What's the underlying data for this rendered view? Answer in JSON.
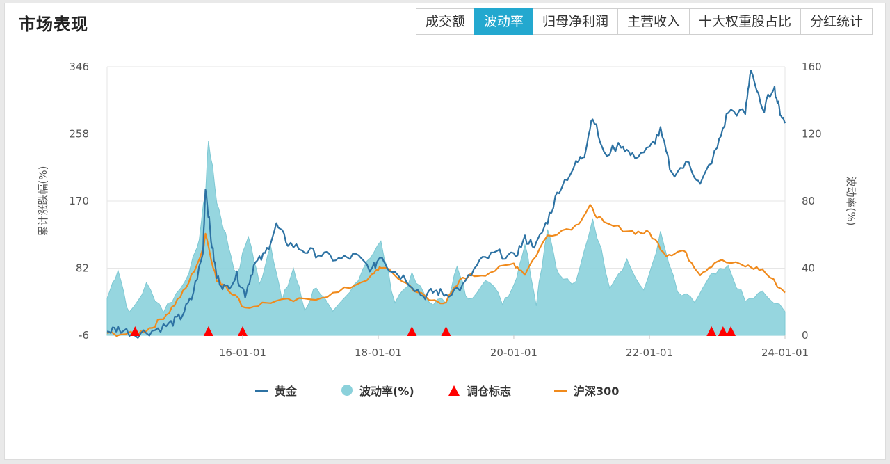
{
  "header": {
    "title": "市场表现",
    "tabs": [
      {
        "label": "成交额",
        "active": false
      },
      {
        "label": "波动率",
        "active": true
      },
      {
        "label": "归母净利润",
        "active": false
      },
      {
        "label": "主营收入",
        "active": false
      },
      {
        "label": "十大权重股占比",
        "active": false
      },
      {
        "label": "分红统计",
        "active": false
      }
    ]
  },
  "chart_data": {
    "type": "line",
    "left_axis": {
      "label": "累计涨跌幅(%)",
      "ticks": [
        "346",
        "258",
        "170",
        "82",
        "-6"
      ],
      "range": [
        -6,
        346
      ]
    },
    "right_axis": {
      "label": "波动率(%)",
      "ticks": [
        "160",
        "120",
        "80",
        "40",
        "0"
      ],
      "range": [
        0,
        160
      ]
    },
    "x_axis": {
      "ticks": [
        "16-01-01",
        "18-01-01",
        "20-01-01",
        "22-01-01",
        "24-01-01"
      ],
      "start": "2014-01-01",
      "end": "2024-01-01"
    },
    "grid": true,
    "legend_position": "bottom",
    "series": [
      {
        "name": "黄金",
        "kind": "line",
        "axis": "left",
        "color": "#2d72a3",
        "points": [
          [
            "2014-01-01",
            -1
          ],
          [
            "2014-03-01",
            3
          ],
          [
            "2014-06-01",
            -4
          ],
          [
            "2014-09-01",
            0
          ],
          [
            "2014-12-01",
            8
          ],
          [
            "2015-02-01",
            18
          ],
          [
            "2015-04-01",
            42
          ],
          [
            "2015-06-01",
            100
          ],
          [
            "2015-06-15",
            190
          ],
          [
            "2015-07-15",
            120
          ],
          [
            "2015-08-15",
            70
          ],
          [
            "2015-10-01",
            55
          ],
          [
            "2015-12-01",
            72
          ],
          [
            "2016-01-15",
            48
          ],
          [
            "2016-03-01",
            85
          ],
          [
            "2016-05-01",
            100
          ],
          [
            "2016-07-01",
            138
          ],
          [
            "2016-09-01",
            115
          ],
          [
            "2016-12-01",
            105
          ],
          [
            "2017-03-01",
            100
          ],
          [
            "2017-06-01",
            93
          ],
          [
            "2017-09-01",
            98
          ],
          [
            "2017-12-01",
            80
          ],
          [
            "2018-01-15",
            100
          ],
          [
            "2018-03-01",
            82
          ],
          [
            "2018-06-01",
            68
          ],
          [
            "2018-09-01",
            45
          ],
          [
            "2018-11-01",
            52
          ],
          [
            "2019-01-01",
            48
          ],
          [
            "2019-04-01",
            58
          ],
          [
            "2019-07-01",
            90
          ],
          [
            "2019-10-01",
            102
          ],
          [
            "2020-01-01",
            96
          ],
          [
            "2020-03-01",
            120
          ],
          [
            "2020-05-01",
            112
          ],
          [
            "2020-07-01",
            145
          ],
          [
            "2020-09-01",
            186
          ],
          [
            "2020-12-01",
            218
          ],
          [
            "2021-01-15",
            232
          ],
          [
            "2021-03-01",
            283
          ],
          [
            "2021-05-01",
            230
          ],
          [
            "2021-08-01",
            245
          ],
          [
            "2021-10-01",
            228
          ],
          [
            "2022-01-01",
            238
          ],
          [
            "2022-03-01",
            262
          ],
          [
            "2022-05-01",
            205
          ],
          [
            "2022-08-01",
            220
          ],
          [
            "2022-10-01",
            190
          ],
          [
            "2023-01-01",
            240
          ],
          [
            "2023-03-01",
            288
          ],
          [
            "2023-06-01",
            285
          ],
          [
            "2023-07-01",
            345
          ],
          [
            "2023-09-01",
            286
          ],
          [
            "2023-11-01",
            322
          ],
          [
            "2023-12-01",
            290
          ],
          [
            "2024-01-01",
            272
          ]
        ]
      },
      {
        "name": "波动率(%)",
        "kind": "area",
        "axis": "right",
        "color": "#8bd1db",
        "points": [
          [
            "2014-01-01",
            22
          ],
          [
            "2014-03-01",
            40
          ],
          [
            "2014-05-01",
            12
          ],
          [
            "2014-08-01",
            30
          ],
          [
            "2014-11-01",
            15
          ],
          [
            "2015-02-01",
            28
          ],
          [
            "2015-05-01",
            50
          ],
          [
            "2015-06-15",
            85
          ],
          [
            "2015-07-01",
            117
          ],
          [
            "2015-08-15",
            80
          ],
          [
            "2015-10-01",
            60
          ],
          [
            "2015-12-01",
            35
          ],
          [
            "2016-02-01",
            60
          ],
          [
            "2016-04-01",
            30
          ],
          [
            "2016-06-01",
            55
          ],
          [
            "2016-08-01",
            20
          ],
          [
            "2016-10-01",
            40
          ],
          [
            "2016-12-01",
            15
          ],
          [
            "2017-02-01",
            30
          ],
          [
            "2017-05-01",
            12
          ],
          [
            "2017-08-01",
            25
          ],
          [
            "2017-11-01",
            45
          ],
          [
            "2018-01-15",
            55
          ],
          [
            "2018-04-01",
            20
          ],
          [
            "2018-07-01",
            35
          ],
          [
            "2018-10-01",
            20
          ],
          [
            "2019-01-01",
            20
          ],
          [
            "2019-03-01",
            40
          ],
          [
            "2019-05-01",
            20
          ],
          [
            "2019-08-01",
            35
          ],
          [
            "2019-11-01",
            20
          ],
          [
            "2020-01-01",
            30
          ],
          [
            "2020-03-01",
            55
          ],
          [
            "2020-05-01",
            20
          ],
          [
            "2020-07-01",
            65
          ],
          [
            "2020-09-01",
            35
          ],
          [
            "2020-12-01",
            30
          ],
          [
            "2021-03-01",
            70
          ],
          [
            "2021-06-01",
            30
          ],
          [
            "2021-09-01",
            45
          ],
          [
            "2021-12-01",
            25
          ],
          [
            "2022-03-01",
            60
          ],
          [
            "2022-06-01",
            25
          ],
          [
            "2022-09-01",
            20
          ],
          [
            "2022-12-01",
            35
          ],
          [
            "2023-03-01",
            40
          ],
          [
            "2023-06-01",
            20
          ],
          [
            "2023-09-01",
            25
          ],
          [
            "2024-01-01",
            14
          ]
        ]
      },
      {
        "name": "沪深300",
        "kind": "line",
        "axis": "left",
        "color": "#f08a1c",
        "points": [
          [
            "2014-01-01",
            -3
          ],
          [
            "2014-06-01",
            -5
          ],
          [
            "2014-09-01",
            5
          ],
          [
            "2014-12-01",
            25
          ],
          [
            "2015-03-01",
            55
          ],
          [
            "2015-06-01",
            105
          ],
          [
            "2015-06-15",
            128
          ],
          [
            "2015-08-15",
            65
          ],
          [
            "2015-10-01",
            60
          ],
          [
            "2016-01-15",
            30
          ],
          [
            "2016-06-01",
            38
          ],
          [
            "2016-12-01",
            40
          ],
          [
            "2017-06-01",
            50
          ],
          [
            "2017-12-01",
            72
          ],
          [
            "2018-01-15",
            85
          ],
          [
            "2018-06-01",
            62
          ],
          [
            "2018-10-01",
            40
          ],
          [
            "2019-01-01",
            38
          ],
          [
            "2019-04-01",
            70
          ],
          [
            "2019-08-01",
            75
          ],
          [
            "2020-01-01",
            88
          ],
          [
            "2020-03-01",
            75
          ],
          [
            "2020-07-01",
            125
          ],
          [
            "2020-12-01",
            138
          ],
          [
            "2021-02-15",
            162
          ],
          [
            "2021-05-01",
            140
          ],
          [
            "2021-10-01",
            130
          ],
          [
            "2022-01-01",
            128
          ],
          [
            "2022-04-01",
            100
          ],
          [
            "2022-07-01",
            105
          ],
          [
            "2022-10-01",
            75
          ],
          [
            "2023-01-01",
            92
          ],
          [
            "2023-06-01",
            85
          ],
          [
            "2023-09-01",
            80
          ],
          [
            "2024-01-01",
            50
          ]
        ]
      },
      {
        "name": "调仓标志",
        "kind": "marker",
        "color": "#ff0000",
        "dates": [
          "2014-06-01",
          "2015-07-01",
          "2016-01-01",
          "2018-07-01",
          "2019-01-01",
          "2022-12-01",
          "2023-02-01",
          "2023-03-15"
        ]
      }
    ]
  }
}
